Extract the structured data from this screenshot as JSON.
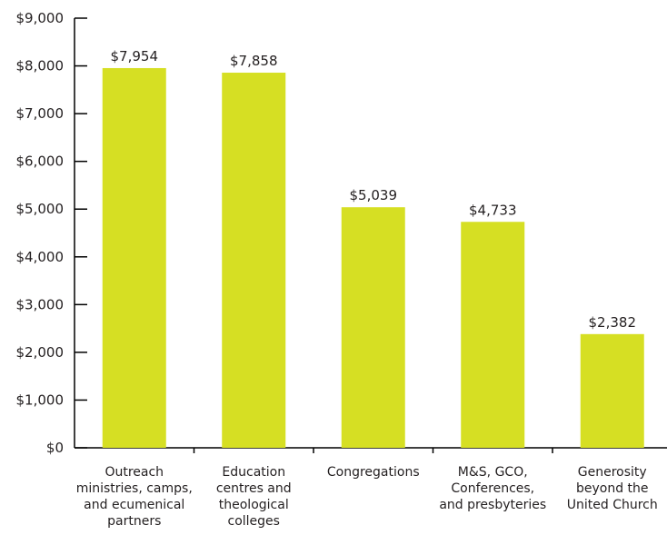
{
  "chart_data": {
    "type": "bar",
    "title": "",
    "xlabel": "",
    "ylabel": "",
    "ylim": [
      0,
      9000
    ],
    "yticks": [
      0,
      1000,
      2000,
      3000,
      4000,
      5000,
      6000,
      7000,
      8000,
      9000
    ],
    "ytick_labels": [
      "$0",
      "$1,000",
      "$2,000",
      "$3,000",
      "$4,000",
      "$5,000",
      "$6,000",
      "$7,000",
      "$8,000",
      "$9,000"
    ],
    "categories": [
      [
        "Outreach",
        "ministries, camps,",
        "and ecumenical",
        "partners"
      ],
      [
        "Education",
        "centres and",
        "theological",
        "colleges"
      ],
      [
        "Congregations"
      ],
      [
        "M&S, GCO,",
        "Conferences,",
        "and presbyteries"
      ],
      [
        "Generosity",
        "beyond the",
        "United Church"
      ]
    ],
    "values": [
      7954,
      7858,
      5039,
      4733,
      2382
    ],
    "value_labels": [
      "$7,954",
      "$7,858",
      "$5,039",
      "$4,733",
      "$2,382"
    ],
    "bar_color": "#d6df23",
    "grid": false,
    "legend": "none"
  }
}
